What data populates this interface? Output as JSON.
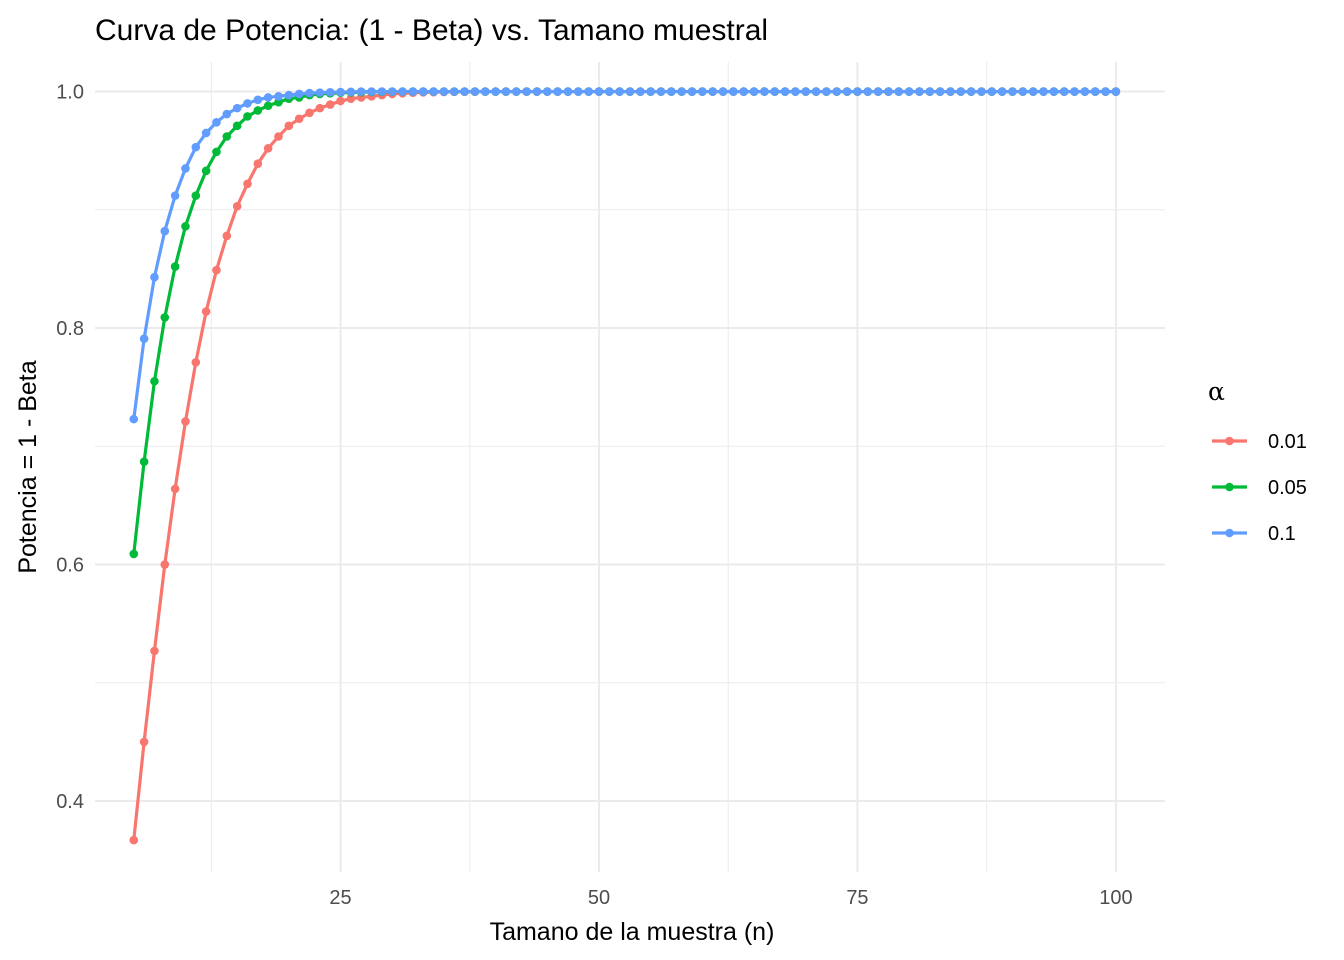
{
  "chart_data": {
    "type": "line",
    "title": "Curva de Potencia: (1 - Beta) vs. Tamano muestral",
    "xlabel": "Tamano de la muestra (n)",
    "ylabel": "Potencia = 1 - Beta",
    "xlim": [
      1.25,
      104.75
    ],
    "ylim": [
      0.34,
      1.025
    ],
    "x_ticks": [
      25,
      50,
      75,
      100
    ],
    "x_tick_labels": [
      "25",
      "50",
      "75",
      "100"
    ],
    "x_minor_ticks": [
      12.5,
      37.5,
      62.5,
      87.5
    ],
    "y_ticks": [
      0.4,
      0.6,
      0.8,
      1.0
    ],
    "y_tick_labels": [
      "0.4",
      "0.6",
      "0.8",
      "1.0"
    ],
    "y_minor_ticks": [
      0.5,
      0.7,
      0.9
    ],
    "grid": true,
    "legend": {
      "title": "α",
      "placement": "right"
    },
    "x_start": 5,
    "x_end": 100,
    "series": [
      {
        "name": "0.01",
        "color": "#F8766D",
        "values": [
          0.367,
          0.45,
          0.527,
          0.6,
          0.664,
          0.721,
          0.771,
          0.814,
          0.849,
          0.878,
          0.903,
          0.922,
          0.939,
          0.952,
          0.962,
          0.971,
          0.977,
          0.982,
          0.986,
          0.989,
          0.992,
          0.994,
          0.995,
          0.996,
          0.997,
          0.998,
          0.9985,
          0.999,
          0.9993,
          0.9995,
          0.9997,
          0.9998,
          0.9999,
          0.9999
        ]
      },
      {
        "name": "0.05",
        "color": "#00BA38",
        "values": [
          0.609,
          0.687,
          0.755,
          0.809,
          0.852,
          0.886,
          0.912,
          0.933,
          0.949,
          0.962,
          0.971,
          0.979,
          0.984,
          0.988,
          0.991,
          0.994,
          0.995,
          0.997,
          0.998,
          0.9985,
          0.999,
          0.9993,
          0.9995,
          0.9997,
          0.9998,
          0.9999
        ]
      },
      {
        "name": "0.1",
        "color": "#619CFF",
        "values": [
          0.723,
          0.791,
          0.843,
          0.882,
          0.912,
          0.935,
          0.953,
          0.965,
          0.974,
          0.981,
          0.986,
          0.99,
          0.993,
          0.995,
          0.996,
          0.997,
          0.998,
          0.9987,
          0.9991,
          0.9994,
          0.9996,
          0.9998
        ]
      }
    ]
  }
}
